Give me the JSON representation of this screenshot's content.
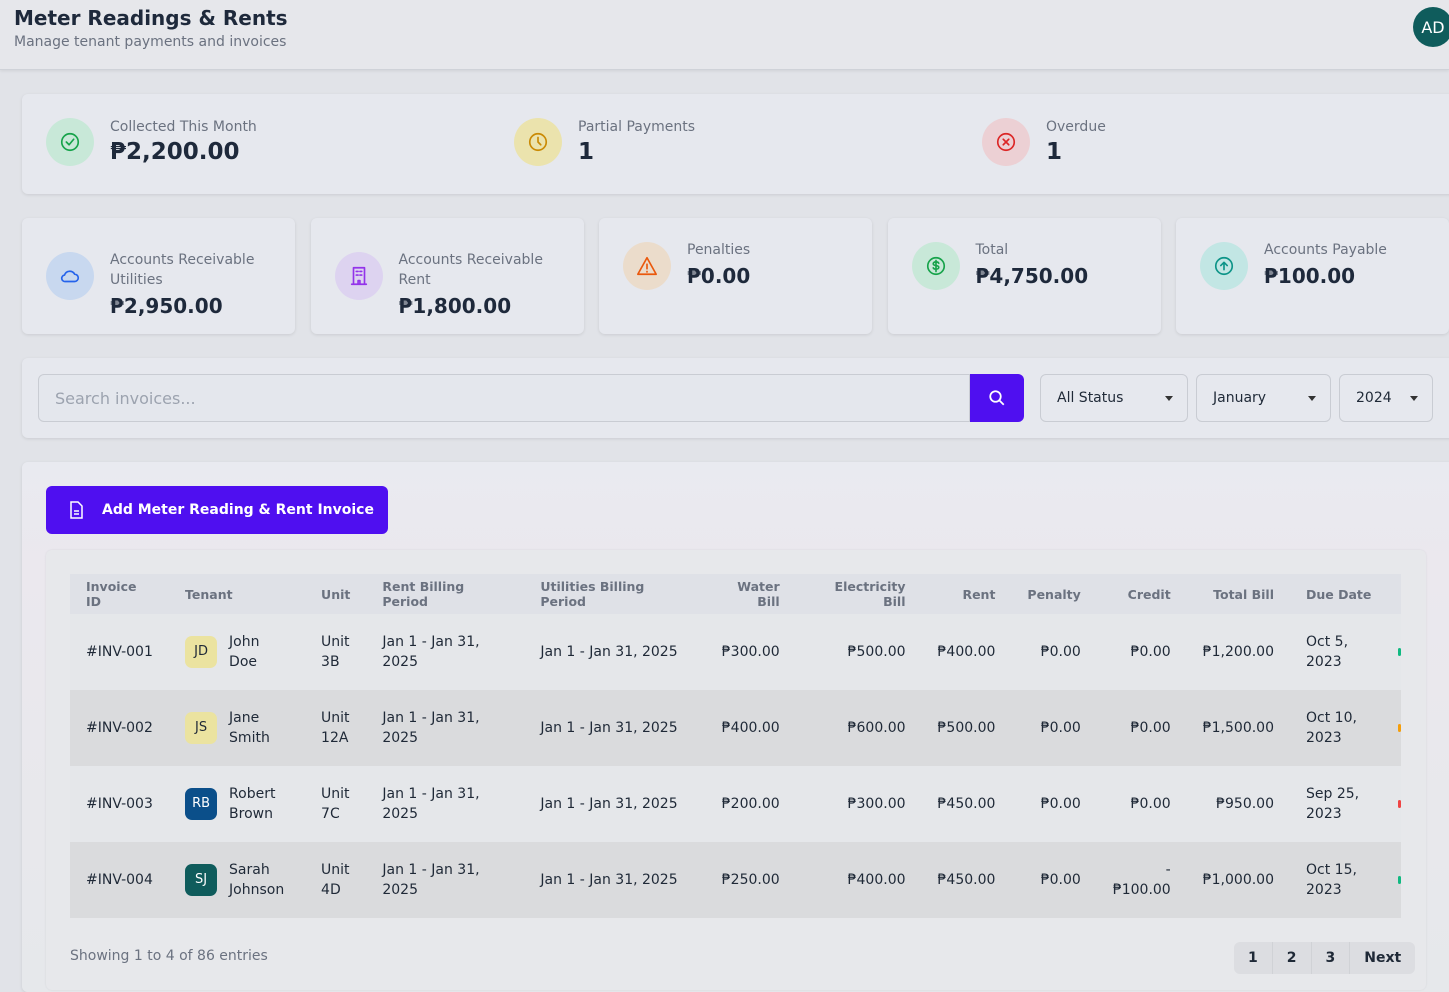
{
  "header": {
    "title": "Meter Readings & Rents",
    "subtitle": "Manage tenant payments and invoices",
    "avatar": "AD"
  },
  "summary": [
    {
      "label": "Collected This Month",
      "value": "₱2,200.00",
      "icon": "check-circle-icon",
      "color": "#16a34a",
      "bg": "#c8e8d8"
    },
    {
      "label": "Partial Payments",
      "value": "1",
      "icon": "clock-icon",
      "color": "#ca8a04",
      "bg": "#ebe3ad"
    },
    {
      "label": "Overdue",
      "value": "1",
      "icon": "x-circle-icon",
      "color": "#dc2626",
      "bg": "#ecd0d4"
    }
  ],
  "accounts": [
    {
      "label": "Accounts Receivable Utilities",
      "value": "₱2,950.00",
      "icon": "cloud-icon",
      "color": "#2563eb",
      "bg": "#c8d8ef"
    },
    {
      "label": "Accounts Receivable Rent",
      "value": "₱1,800.00",
      "icon": "building-icon",
      "color": "#9333ea",
      "bg": "#ddd3f0"
    },
    {
      "label": "Penalties",
      "value": "₱0.00",
      "icon": "warning-icon",
      "color": "#ea580c",
      "bg": "#ebdccb"
    },
    {
      "label": "Total",
      "value": "₱4,750.00",
      "icon": "dollar-icon",
      "color": "#16a34a",
      "bg": "#c8e8d8"
    },
    {
      "label": "Accounts Payable",
      "value": "₱100.00",
      "icon": "arrow-up-circle-icon",
      "color": "#0d9488",
      "bg": "#c2e6e4"
    }
  ],
  "filters": {
    "search_placeholder": "Search invoices...",
    "status": "All Status",
    "month": "January",
    "year": "2024"
  },
  "add_button": "Add Meter Reading & Rent Invoice",
  "table": {
    "columns": [
      "Invoice ID",
      "Tenant",
      "Unit",
      "Rent Billing Period",
      "Utilities Billing Period",
      "Water Bill",
      "Electricity Bill",
      "Rent",
      "Penalty",
      "Credit",
      "Total Bill",
      "Due Date"
    ],
    "rows": [
      {
        "id": "#INV-001",
        "initials": "JD",
        "av_bg": "#ebe3a0",
        "av_fg": "#1f2937",
        "tenant": "John Doe",
        "unit": "Unit 3B",
        "rent_period": "Jan 1 - Jan 31, 2025",
        "util_period": "Jan 1 - Jan 31, 2025",
        "water": "₱300.00",
        "elec": "₱500.00",
        "rent": "₱400.00",
        "penalty": "₱0.00",
        "credit": "₱0.00",
        "total": "₱1,200.00",
        "due": "Oct 5, 2023",
        "status_color": "#10b981"
      },
      {
        "id": "#INV-002",
        "initials": "JS",
        "av_bg": "#ebe3a0",
        "av_fg": "#1f2937",
        "tenant": "Jane Smith",
        "unit": "Unit 12A",
        "rent_period": "Jan 1 - Jan 31, 2025",
        "util_period": "Jan 1 - Jan 31, 2025",
        "water": "₱400.00",
        "elec": "₱600.00",
        "rent": "₱500.00",
        "penalty": "₱0.00",
        "credit": "₱0.00",
        "total": "₱1,500.00",
        "due": "Oct 10, 2023",
        "status_color": "#f59e0b"
      },
      {
        "id": "#INV-003",
        "initials": "RB",
        "av_bg": "#0b4f8a",
        "av_fg": "#ffffff",
        "tenant": "Robert Brown",
        "unit": "Unit 7C",
        "rent_period": "Jan 1 - Jan 31, 2025",
        "util_period": "Jan 1 - Jan 31, 2025",
        "water": "₱200.00",
        "elec": "₱300.00",
        "rent": "₱450.00",
        "penalty": "₱0.00",
        "credit": "₱0.00",
        "total": "₱950.00",
        "due": "Sep 25, 2023",
        "status_color": "#ef4444"
      },
      {
        "id": "#INV-004",
        "initials": "SJ",
        "av_bg": "#0f5c5c",
        "av_fg": "#ffffff",
        "tenant": "Sarah Johnson",
        "unit": "Unit 4D",
        "rent_period": "Jan 1 - Jan 31, 2025",
        "util_period": "Jan 1 - Jan 31, 2025",
        "water": "₱250.00",
        "elec": "₱400.00",
        "rent": "₱450.00",
        "penalty": "₱0.00",
        "credit": "-₱100.00",
        "total": "₱1,000.00",
        "due": "Oct 15, 2023",
        "status_color": "#10b981"
      }
    ]
  },
  "footer": {
    "showing": "Showing 1 to 4 of 86 entries",
    "pages": [
      "1",
      "2",
      "3"
    ],
    "next": "Next"
  }
}
